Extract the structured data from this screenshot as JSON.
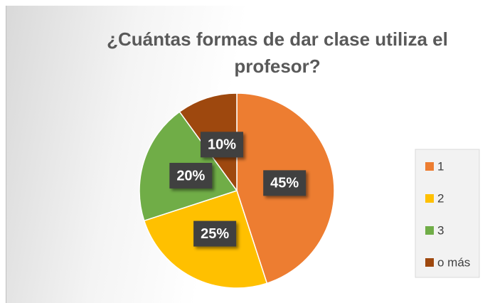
{
  "chart_data": {
    "type": "pie",
    "title": "¿Cuántas formas de dar clase utiliza el profesor?",
    "categories": [
      "1",
      "2",
      "3",
      "o más"
    ],
    "values": [
      45,
      25,
      20,
      10
    ],
    "value_labels": [
      "45%",
      "25%",
      "20%",
      "10%"
    ],
    "colors": [
      "#ED7D31",
      "#FFC000",
      "#70AD47",
      "#9E480E"
    ],
    "legend": "right"
  }
}
